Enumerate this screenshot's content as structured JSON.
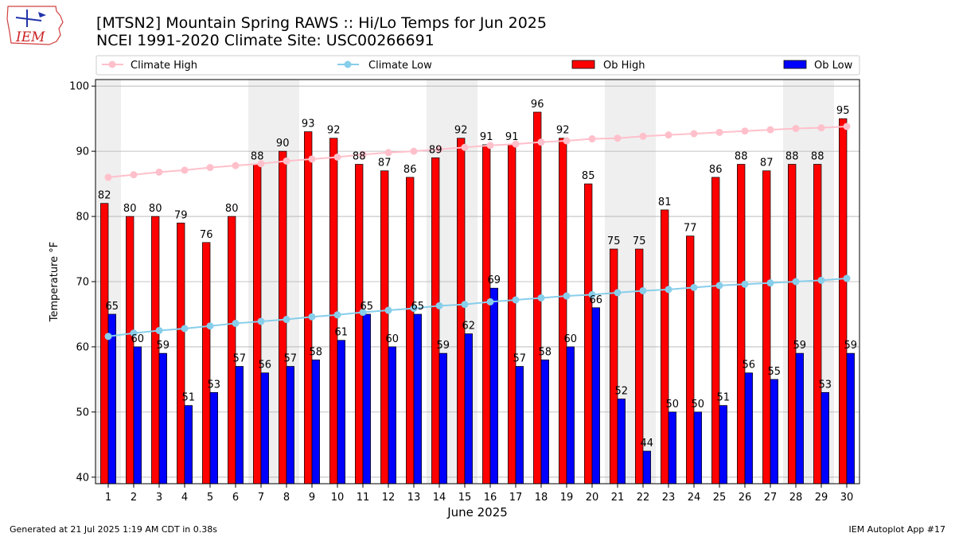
{
  "header": {
    "title_line1": "[MTSN2] Mountain Spring RAWS :: Hi/Lo Temps for Jun 2025",
    "title_line2": "NCEI 1991-2020 Climate Site: USC00266691",
    "logo_text": "IEM"
  },
  "footer": {
    "left": "Generated at 21 Jul 2025 1:19 AM CDT in 0.38s",
    "right": "IEM Autoplot App #17"
  },
  "colors": {
    "ob_high": "#ff0000",
    "ob_low": "#0000ff",
    "climate_high": "#ffc0cb",
    "climate_low": "#87ceeb",
    "weekend_band": "#efefef",
    "grid": "#b0b0b0"
  },
  "chart_data": {
    "type": "bar",
    "xlabel": "June 2025",
    "ylabel": "Temperature °F",
    "ylim": [
      39,
      101
    ],
    "yticks": [
      40,
      50,
      60,
      70,
      80,
      90,
      100
    ],
    "grid": "horizontal",
    "legend_placement": "top",
    "categories": [
      "1",
      "2",
      "3",
      "4",
      "5",
      "6",
      "7",
      "8",
      "9",
      "10",
      "11",
      "12",
      "13",
      "14",
      "15",
      "16",
      "17",
      "18",
      "19",
      "20",
      "21",
      "22",
      "23",
      "24",
      "25",
      "26",
      "27",
      "28",
      "29",
      "30"
    ],
    "weekend_days": [
      1,
      7,
      8,
      14,
      15,
      21,
      22,
      28,
      29
    ],
    "series": [
      {
        "name": "Climate High",
        "kind": "line",
        "values": [
          86.0,
          86.4,
          86.8,
          87.1,
          87.5,
          87.8,
          88.1,
          88.5,
          88.8,
          89.1,
          89.5,
          89.8,
          90.0,
          90.3,
          90.6,
          90.9,
          91.1,
          91.4,
          91.6,
          91.9,
          92.0,
          92.3,
          92.5,
          92.7,
          92.9,
          93.1,
          93.3,
          93.5,
          93.6,
          93.8
        ]
      },
      {
        "name": "Climate Low",
        "kind": "line",
        "values": [
          61.6,
          62.1,
          62.5,
          62.8,
          63.2,
          63.6,
          63.9,
          64.2,
          64.6,
          64.9,
          65.3,
          65.6,
          65.9,
          66.3,
          66.5,
          66.9,
          67.2,
          67.5,
          67.8,
          68.0,
          68.3,
          68.6,
          68.8,
          69.1,
          69.4,
          69.6,
          69.8,
          70.0,
          70.2,
          70.5
        ]
      },
      {
        "name": "Ob High",
        "kind": "bar",
        "values": [
          82,
          80,
          80,
          79,
          76,
          80,
          88,
          90,
          93,
          92,
          88,
          87,
          86,
          89,
          92,
          91,
          91,
          96,
          92,
          85,
          75,
          75,
          81,
          77,
          86,
          88,
          87,
          88,
          88,
          95
        ]
      },
      {
        "name": "Ob Low",
        "kind": "bar",
        "values": [
          65,
          60,
          59,
          51,
          53,
          57,
          56,
          57,
          58,
          61,
          65,
          60,
          65,
          59,
          62,
          69,
          57,
          58,
          60,
          66,
          52,
          44,
          50,
          50,
          51,
          56,
          55,
          59,
          53,
          59
        ]
      }
    ]
  }
}
